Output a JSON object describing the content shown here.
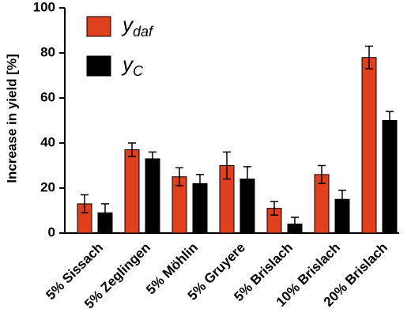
{
  "chart_data": {
    "type": "bar",
    "y_label": "Increase in yield [%]",
    "categories": [
      "5% Sissach",
      "5% Zeglingen",
      "5% Möhlin",
      "5% Gruyere",
      "5% Brislach",
      "10% Brislach",
      "20% Brislach"
    ],
    "series": [
      {
        "name": "ydaf",
        "color": "#e0401e",
        "values": [
          13,
          37,
          25,
          30,
          11,
          26,
          78
        ],
        "errors": [
          4,
          3,
          4,
          6,
          3,
          4,
          5
        ]
      },
      {
        "name": "yC",
        "color": "#000000",
        "values": [
          9,
          33,
          22,
          24,
          4,
          15,
          50
        ],
        "errors": [
          4,
          3,
          4,
          5.5,
          3,
          4,
          4
        ]
      }
    ],
    "ylim": [
      0,
      100
    ],
    "yticks": [
      0,
      20,
      40,
      60,
      80,
      100
    ],
    "grid": false,
    "legend": "upper left"
  }
}
